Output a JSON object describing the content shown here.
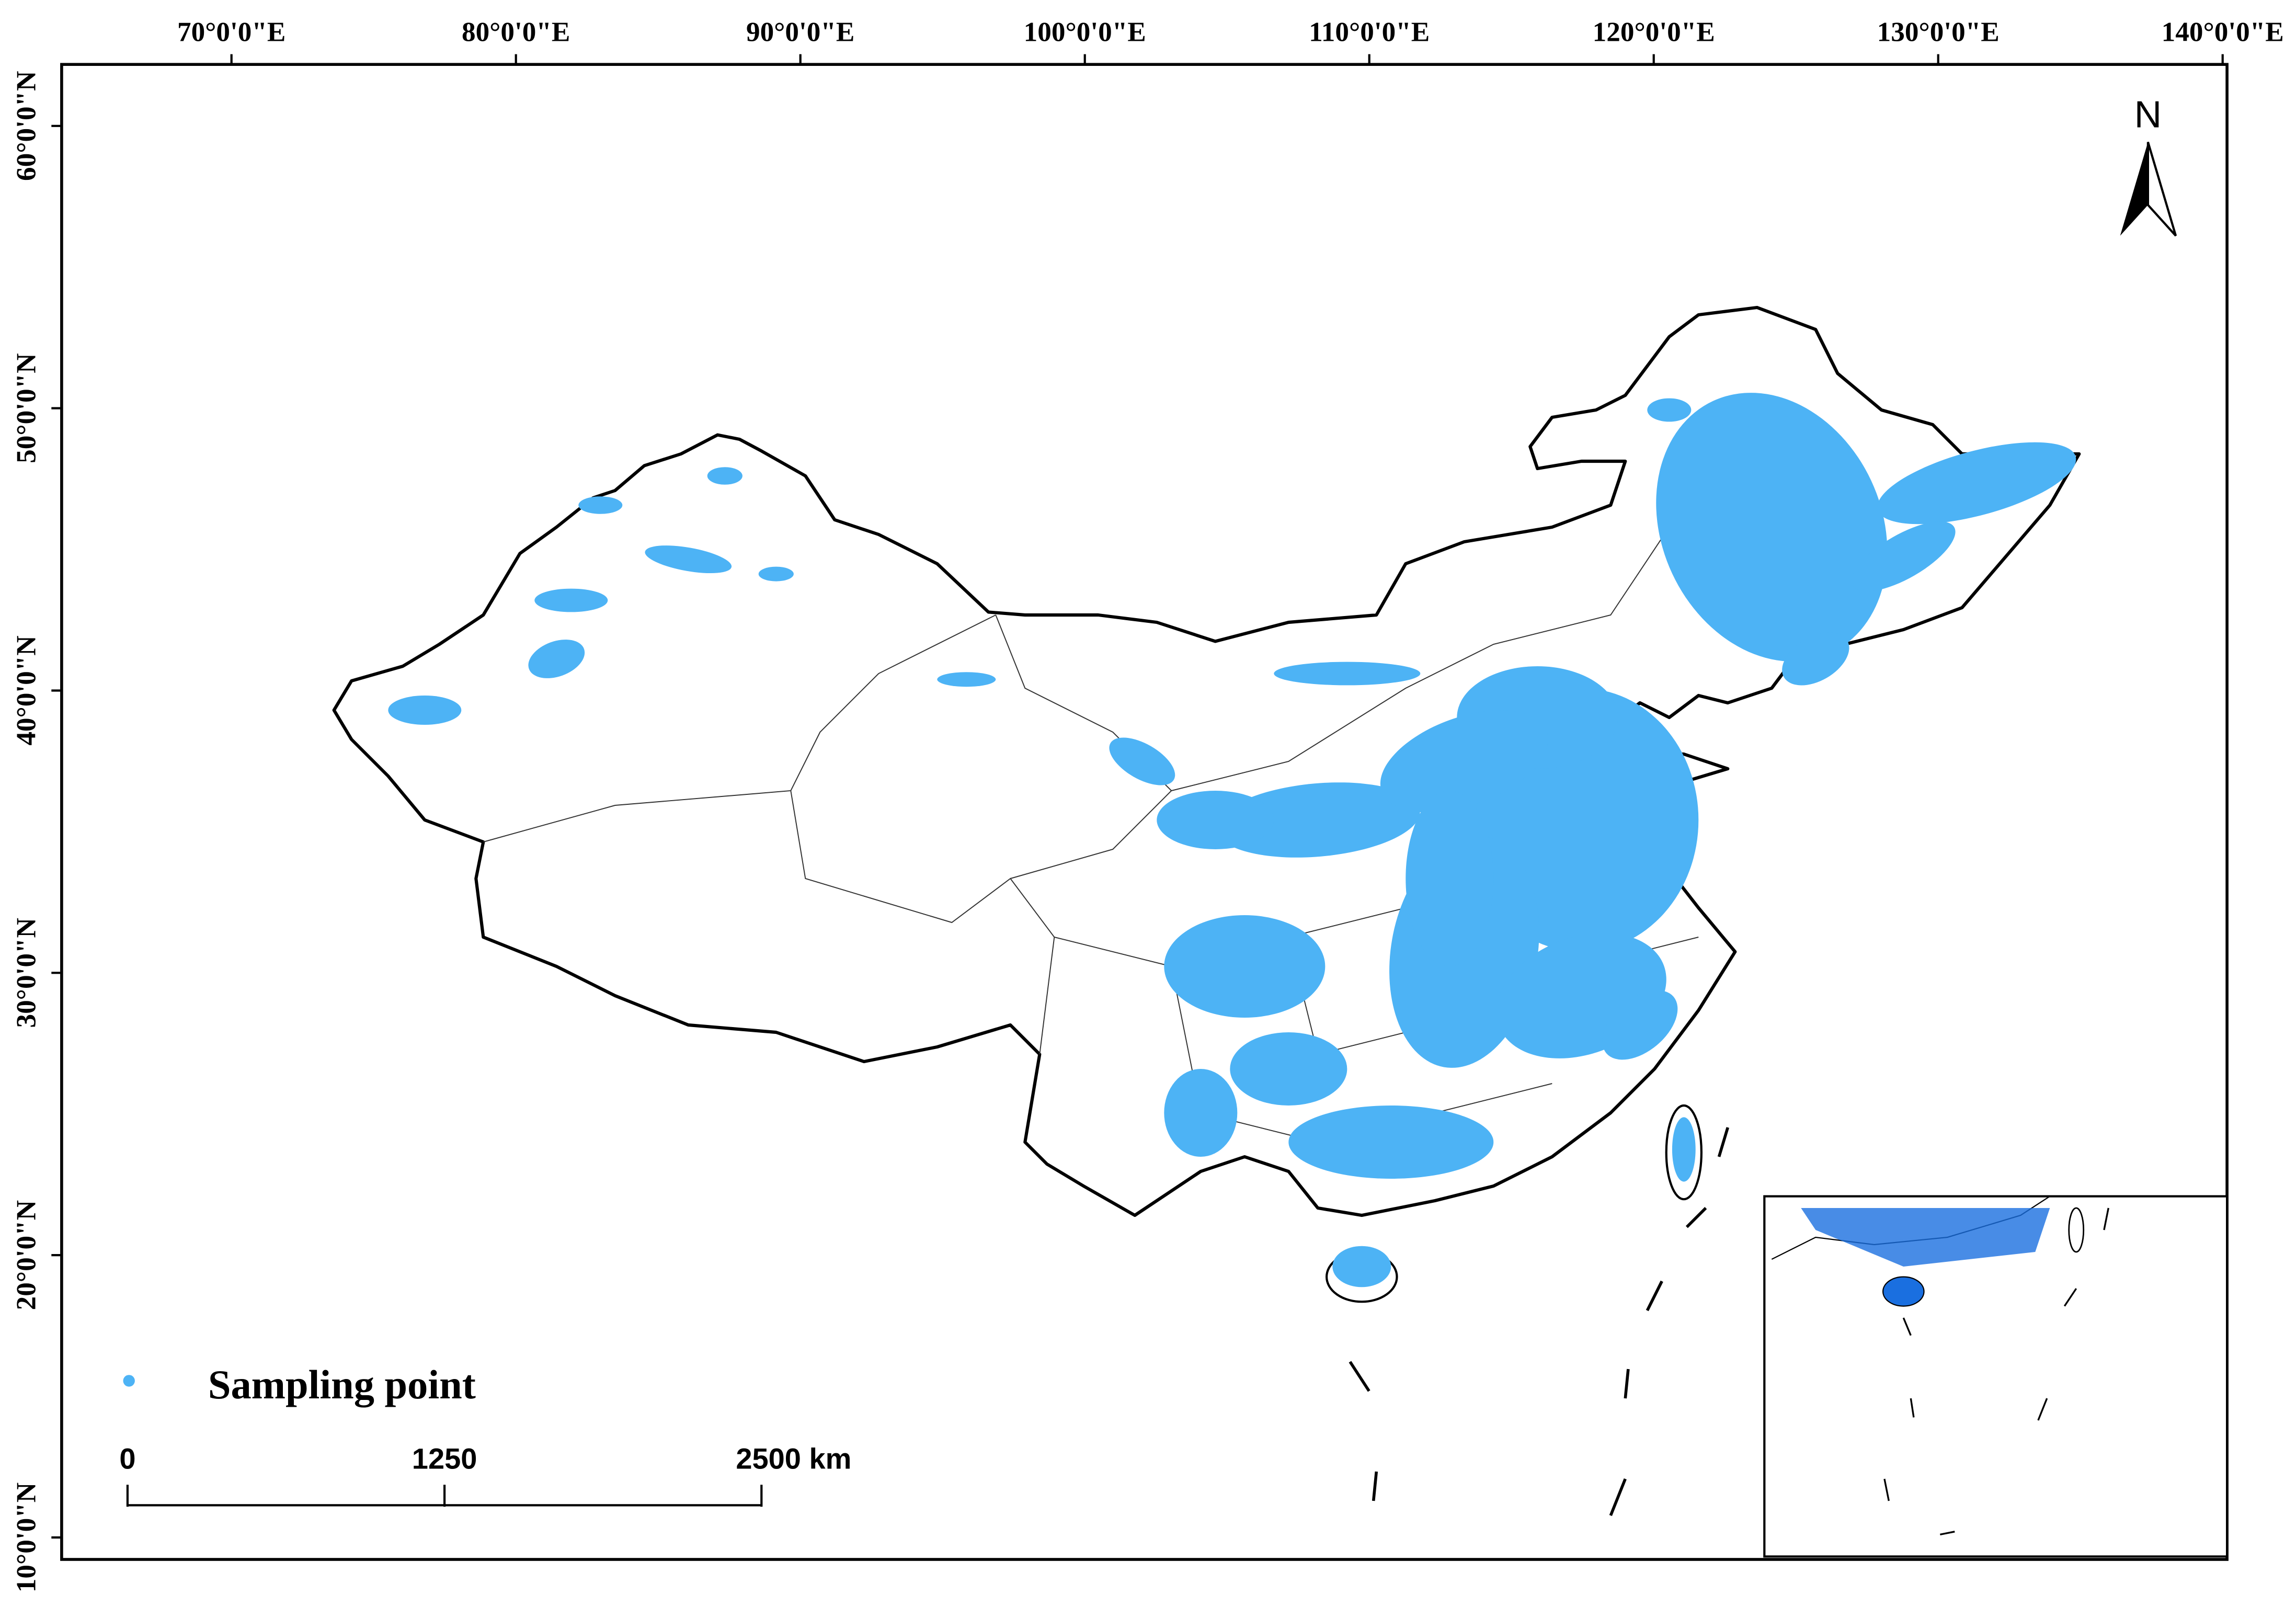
{
  "map": {
    "lon_ticks": [
      {
        "value": 70,
        "label": "70°0'0\"E"
      },
      {
        "value": 80,
        "label": "80°0'0\"E"
      },
      {
        "value": 90,
        "label": "90°0'0\"E"
      },
      {
        "value": 100,
        "label": "100°0'0\"E"
      },
      {
        "value": 110,
        "label": "110°0'0\"E"
      },
      {
        "value": 120,
        "label": "120°0'0\"E"
      },
      {
        "value": 130,
        "label": "130°0'0\"E"
      },
      {
        "value": 140,
        "label": "140°0'0\"E"
      }
    ],
    "lat_ticks": [
      {
        "value": 10,
        "label": "10°0'0\"N"
      },
      {
        "value": 20,
        "label": "20°0'0\"N"
      },
      {
        "value": 30,
        "label": "30°0'0\"N"
      },
      {
        "value": 40,
        "label": "40°0'0\"N"
      },
      {
        "value": 50,
        "label": "50°0'0\"N"
      },
      {
        "value": 60,
        "label": "60°0'0\"N"
      }
    ],
    "north_label": "N",
    "legend": {
      "label": "Sampling point",
      "color": "#4db3f5"
    },
    "scale_bar": {
      "ticks": [
        0,
        1250,
        {
          "value": 2500,
          "label": "2500 km"
        }
      ]
    }
  }
}
